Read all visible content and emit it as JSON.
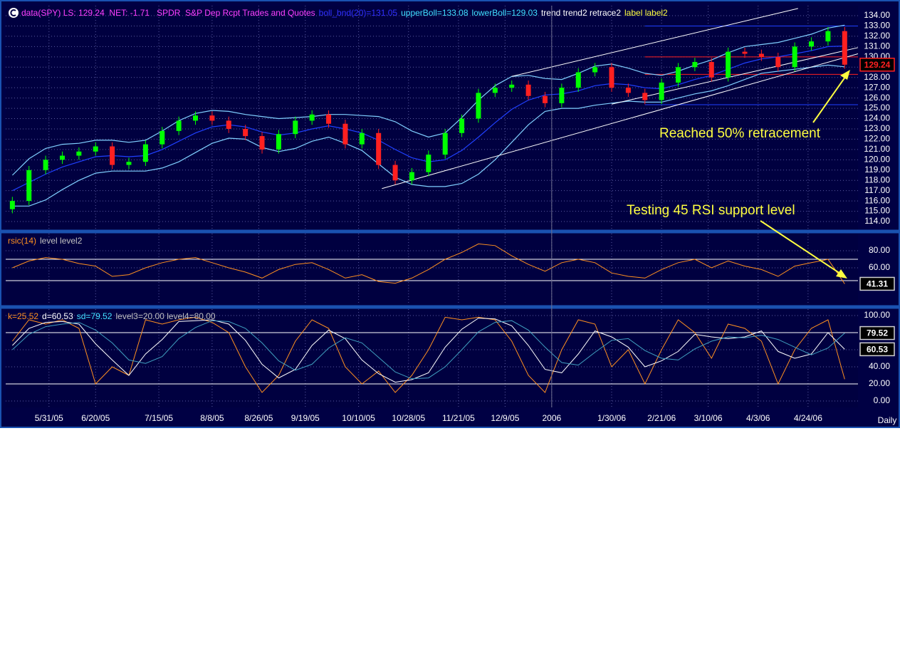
{
  "chart_data": [
    {
      "type": "candlestick",
      "header": [
        {
          "text": "data(SPY) LS: 129.24  NET: -1.71   SPDR  S&P Dep Rcpt Trades and Quotes",
          "color": "#ff40ff"
        },
        {
          "text": "boll_bnd(20)=131.05",
          "color": "#3030ff"
        },
        {
          "text": "upperBoll=133.08",
          "color": "#40e0ff"
        },
        {
          "text": "lowerBoll=129.03",
          "color": "#40e0ff"
        },
        {
          "text": "trend trend2 retrace2",
          "color": "#ffffff"
        },
        {
          "text": "label label2",
          "color": "#ffff40"
        }
      ],
      "x": [
        0,
        5,
        10,
        15,
        20,
        25,
        30,
        35,
        40,
        45,
        50,
        55,
        60,
        65,
        70,
        75,
        80,
        85,
        90,
        95,
        100,
        105,
        110,
        115,
        120,
        125,
        130,
        135,
        140,
        145,
        150,
        155,
        160,
        165,
        170,
        175,
        180,
        185,
        190,
        195,
        200,
        205,
        210,
        215,
        220,
        225,
        230,
        235,
        240,
        245,
        250
      ],
      "open": [
        115.2,
        116.0,
        119.0,
        120.0,
        120.4,
        120.8,
        121.3,
        119.5,
        119.8,
        121.5,
        122.8,
        123.8,
        124.3,
        123.8,
        123.0,
        122.3,
        121.0,
        122.5,
        123.8,
        124.4,
        123.5,
        121.5,
        122.6,
        119.5,
        118.0,
        118.8,
        120.5,
        122.6,
        124.0,
        126.5,
        127.0,
        127.3,
        126.2,
        125.5,
        127.0,
        128.5,
        129.0,
        127.0,
        126.5,
        125.8,
        127.5,
        129.0,
        129.5,
        128.0,
        130.5,
        130.3,
        130.0,
        129.0,
        131.0,
        131.5,
        132.5
      ],
      "high": [
        116.4,
        119.4,
        120.4,
        120.8,
        121.2,
        121.7,
        121.7,
        120.2,
        121.9,
        123.2,
        124.2,
        124.7,
        124.7,
        124.2,
        123.4,
        122.7,
        122.9,
        124.2,
        124.8,
        124.8,
        123.9,
        123.0,
        123.0,
        119.9,
        119.2,
        120.9,
        123.0,
        124.4,
        126.9,
        127.4,
        127.7,
        127.7,
        126.6,
        127.4,
        128.9,
        129.4,
        129.4,
        127.4,
        126.9,
        127.9,
        129.4,
        129.9,
        129.9,
        130.9,
        130.9,
        130.7,
        130.4,
        131.4,
        131.9,
        132.9,
        132.9
      ],
      "low": [
        114.8,
        115.6,
        118.6,
        119.6,
        120.0,
        120.4,
        119.1,
        119.1,
        119.4,
        121.1,
        122.4,
        123.4,
        123.4,
        122.6,
        121.9,
        120.6,
        120.6,
        122.1,
        123.4,
        123.1,
        121.1,
        121.1,
        119.1,
        117.6,
        117.6,
        118.4,
        120.1,
        122.2,
        123.6,
        126.1,
        126.6,
        125.8,
        125.1,
        125.1,
        126.6,
        128.1,
        126.6,
        126.1,
        125.4,
        125.4,
        127.1,
        128.6,
        127.6,
        127.6,
        129.9,
        129.6,
        128.6,
        128.6,
        130.6,
        131.1,
        128.84
      ],
      "close": [
        116.0,
        119.0,
        120.0,
        120.4,
        120.8,
        121.3,
        119.5,
        119.8,
        121.5,
        122.8,
        123.8,
        124.3,
        123.8,
        123.0,
        122.3,
        121.0,
        122.5,
        123.8,
        124.4,
        123.5,
        121.5,
        122.6,
        119.5,
        118.0,
        118.8,
        120.5,
        122.6,
        124.0,
        126.5,
        127.0,
        127.3,
        126.2,
        125.5,
        127.0,
        128.5,
        129.0,
        127.0,
        126.5,
        125.8,
        127.5,
        129.0,
        129.5,
        128.0,
        130.5,
        130.3,
        130.0,
        129.0,
        131.0,
        131.5,
        132.5,
        129.24
      ],
      "up_color": "#00ff00",
      "down_color": "#ff2020",
      "last_box_color": "#ff2020",
      "overlays": [
        {
          "color": "#2040ff",
          "values": [
            117.0,
            117.8,
            118.6,
            119.3,
            119.8,
            120.3,
            120.4,
            120.3,
            120.4,
            121.0,
            121.8,
            122.6,
            123.2,
            123.4,
            123.2,
            122.7,
            122.4,
            122.6,
            123.0,
            123.3,
            123.0,
            122.6,
            121.9,
            121.0,
            120.2,
            119.8,
            120.0,
            120.9,
            122.2,
            123.6,
            124.9,
            125.8,
            126.3,
            126.4,
            126.7,
            127.2,
            127.4,
            127.3,
            127.0,
            126.9,
            127.3,
            127.8,
            128.2,
            128.8,
            129.4,
            129.8,
            130.0,
            130.3,
            130.6,
            131.0,
            131.05
          ]
        },
        {
          "color": "#80d0ff",
          "values": [
            118.5,
            120.1,
            121.1,
            121.5,
            121.6,
            121.9,
            121.9,
            121.7,
            121.9,
            122.8,
            123.8,
            124.5,
            124.8,
            124.7,
            124.4,
            124.2,
            124.0,
            124.1,
            124.2,
            124.4,
            124.4,
            124.3,
            124.2,
            123.7,
            122.8,
            122.2,
            122.6,
            124.1,
            125.8,
            127.2,
            128.1,
            128.2,
            127.9,
            127.8,
            128.4,
            129.1,
            129.3,
            128.9,
            128.4,
            128.2,
            128.6,
            129.2,
            129.7,
            130.4,
            131.0,
            131.2,
            131.4,
            131.8,
            132.2,
            132.8,
            133.08
          ]
        },
        {
          "color": "#80d0ff",
          "values": [
            115.5,
            115.5,
            116.1,
            117.1,
            118.0,
            118.7,
            118.9,
            118.9,
            118.9,
            119.2,
            119.8,
            120.7,
            121.6,
            122.1,
            122.0,
            121.2,
            120.8,
            121.1,
            121.8,
            122.2,
            121.6,
            120.9,
            119.6,
            118.3,
            117.6,
            117.4,
            117.4,
            117.7,
            118.6,
            120.0,
            121.7,
            123.4,
            124.7,
            125.0,
            125.0,
            125.3,
            125.5,
            125.7,
            125.6,
            125.6,
            126.0,
            126.4,
            126.7,
            127.2,
            127.8,
            128.4,
            128.6,
            128.8,
            129.0,
            129.2,
            129.03
          ]
        }
      ],
      "trend_lines": [
        [
          [
            111,
            117.2
          ],
          [
            254,
            130.3
          ]
        ],
        [
          [
            150,
            128.1
          ],
          [
            236,
            134.7
          ]
        ],
        [
          [
            180,
            125.4
          ],
          [
            254,
            130.9
          ]
        ]
      ],
      "retrace_start": 190,
      "retrace_levels": [
        {
          "value": 133.0,
          "color": "#2040ff"
        },
        {
          "value": 130.0,
          "color": "#ff2020"
        },
        {
          "value": 128.3,
          "color": "#ff2020"
        },
        {
          "value": 125.35,
          "color": "#2040ff"
        }
      ],
      "annotations": [
        {
          "text": "Reached 50% retracement"
        },
        {
          "text": "Testing 45 RSI support level"
        }
      ],
      "xlim": [
        -2,
        254
      ],
      "ylim": [
        113.24,
        134.97
      ],
      "yticks": [
        {
          "value": 114,
          "label": "114.00"
        },
        {
          "value": 115,
          "label": "115.00"
        },
        {
          "value": 116,
          "label": "116.00"
        },
        {
          "value": 117,
          "label": "117.00"
        },
        {
          "value": 118,
          "label": "118.00"
        },
        {
          "value": 119,
          "label": "119.00"
        },
        {
          "value": 120,
          "label": "120.00"
        },
        {
          "value": 121,
          "label": "121.00"
        },
        {
          "value": 122,
          "label": "122.00"
        },
        {
          "value": 123,
          "label": "123.00"
        },
        {
          "value": 124,
          "label": "124.00"
        },
        {
          "value": 125,
          "label": "125.00"
        },
        {
          "value": 126,
          "label": "126.00"
        },
        {
          "value": 127,
          "label": "127.00"
        },
        {
          "value": 128,
          "label": "128.00"
        },
        {
          "value": 129,
          "label": "129.00"
        },
        {
          "value": 130,
          "label": "130.00"
        },
        {
          "value": 131,
          "label": "131.00"
        },
        {
          "value": 132,
          "label": "132.00"
        },
        {
          "value": 133,
          "label": "133.00"
        },
        {
          "value": 134,
          "label": "134.00"
        }
      ],
      "xticks": [
        {
          "value": 11,
          "label": "5/31/05"
        },
        {
          "value": 25,
          "label": "6/20/05"
        },
        {
          "value": 44,
          "label": "7/15/05"
        },
        {
          "value": 60,
          "label": "8/8/05"
        },
        {
          "value": 74,
          "label": "8/26/05"
        },
        {
          "value": 88,
          "label": "9/19/05"
        },
        {
          "value": 104,
          "label": "10/10/05"
        },
        {
          "value": 119,
          "label": "10/28/05"
        },
        {
          "value": 134,
          "label": "11/21/05"
        },
        {
          "value": 148,
          "label": "12/9/05"
        },
        {
          "value": 162,
          "label": "2006"
        },
        {
          "value": 180,
          "label": "1/30/06"
        },
        {
          "value": 195,
          "label": "2/21/06"
        },
        {
          "value": 209,
          "label": "3/10/06"
        },
        {
          "value": 224,
          "label": "4/3/06"
        },
        {
          "value": 239,
          "label": "4/24/06"
        }
      ],
      "x_label": "Daily",
      "grid": true
    },
    {
      "type": "line",
      "header": [
        {
          "text": "rsic(14)",
          "color": "#ff9020"
        },
        {
          "text": "level level2",
          "color": "#c0c0c0"
        }
      ],
      "x": [
        0,
        5,
        10,
        15,
        20,
        25,
        30,
        35,
        40,
        45,
        50,
        55,
        60,
        65,
        70,
        75,
        80,
        85,
        90,
        95,
        100,
        105,
        110,
        115,
        120,
        125,
        130,
        135,
        140,
        145,
        150,
        155,
        160,
        165,
        170,
        175,
        180,
        185,
        190,
        195,
        200,
        205,
        210,
        215,
        220,
        225,
        230,
        235,
        240,
        245,
        250
      ],
      "series": [
        {
          "color": "#ff9020",
          "boxed": true,
          "values": [
            60,
            68,
            72,
            70,
            65,
            62,
            50,
            52,
            60,
            66,
            70,
            72,
            66,
            60,
            55,
            48,
            58,
            64,
            66,
            58,
            48,
            52,
            44,
            42,
            48,
            58,
            70,
            78,
            88,
            86,
            74,
            64,
            56,
            66,
            70,
            66,
            54,
            50,
            48,
            58,
            66,
            70,
            60,
            68,
            62,
            58,
            50,
            62,
            66,
            70,
            41.31
          ]
        }
      ],
      "levels": [
        45,
        70
      ],
      "xlim": [
        -2,
        254
      ],
      "ylim": [
        16.7,
        100
      ],
      "yticks": [
        {
          "value": 60,
          "label": "60.00"
        },
        {
          "value": 80,
          "label": "80.00"
        }
      ],
      "grid": true
    },
    {
      "type": "line",
      "header": [
        {
          "text": "k=25.52",
          "color": "#ff9020"
        },
        {
          "text": "d=60.53",
          "color": "#ffffff"
        },
        {
          "text": "sd=79.52",
          "color": "#40e0ff"
        },
        {
          "text": "level3=20.00 level4=80.00",
          "color": "#c0c0c0"
        }
      ],
      "x": [
        0,
        5,
        10,
        15,
        20,
        25,
        30,
        35,
        40,
        45,
        50,
        55,
        60,
        65,
        70,
        75,
        80,
        85,
        90,
        95,
        100,
        105,
        110,
        115,
        120,
        125,
        130,
        135,
        140,
        145,
        150,
        155,
        160,
        165,
        170,
        175,
        180,
        185,
        190,
        195,
        200,
        205,
        210,
        215,
        220,
        225,
        230,
        235,
        240,
        245,
        250
      ],
      "series": [
        {
          "color": "#ff9020",
          "values": [
            70,
            95,
            90,
            95,
            85,
            20,
            40,
            30,
            95,
            90,
            95,
            98,
            92,
            80,
            40,
            10,
            30,
            70,
            95,
            85,
            40,
            20,
            35,
            10,
            30,
            60,
            98,
            95,
            98,
            95,
            70,
            30,
            10,
            60,
            95,
            90,
            40,
            60,
            20,
            60,
            95,
            80,
            50,
            90,
            85,
            70,
            20,
            60,
            85,
            95,
            25.52
          ]
        },
        {
          "color": "#ffffff",
          "boxed": true,
          "values": [
            65,
            85,
            92,
            93,
            90,
            67,
            48,
            30,
            55,
            72,
            93,
            94,
            95,
            90,
            71,
            43,
            27,
            37,
            65,
            83,
            73,
            48,
            32,
            22,
            25,
            33,
            63,
            84,
            97,
            96,
            88,
            65,
            37,
            33,
            55,
            82,
            75,
            63,
            40,
            47,
            58,
            78,
            75,
            73,
            75,
            82,
            58,
            50,
            55,
            80,
            60.53
          ]
        },
        {
          "color": "#40a0c0",
          "boxed": true,
          "values": [
            60,
            78,
            87,
            90,
            92,
            83,
            68,
            48,
            44,
            52,
            73,
            86,
            94,
            93,
            85,
            68,
            47,
            36,
            43,
            62,
            74,
            68,
            51,
            34,
            26,
            27,
            40,
            60,
            81,
            92,
            94,
            83,
            63,
            45,
            42,
            57,
            71,
            73,
            59,
            50,
            48,
            61,
            70,
            75,
            74,
            77,
            72,
            63,
            54,
            62,
            79.52
          ]
        }
      ],
      "levels": [
        20,
        80
      ],
      "xlim": [
        -2,
        254
      ],
      "ylim": [
        -7.5,
        107.5
      ],
      "yticks": [
        {
          "value": 0,
          "label": "0.00"
        },
        {
          "value": 20,
          "label": "20.00"
        },
        {
          "value": 40,
          "label": "40.00"
        },
        {
          "value": 60,
          "label": "60.00"
        },
        {
          "value": 80,
          "label": "80.00"
        },
        {
          "value": 100,
          "label": "100.00"
        }
      ],
      "grid": true
    }
  ]
}
